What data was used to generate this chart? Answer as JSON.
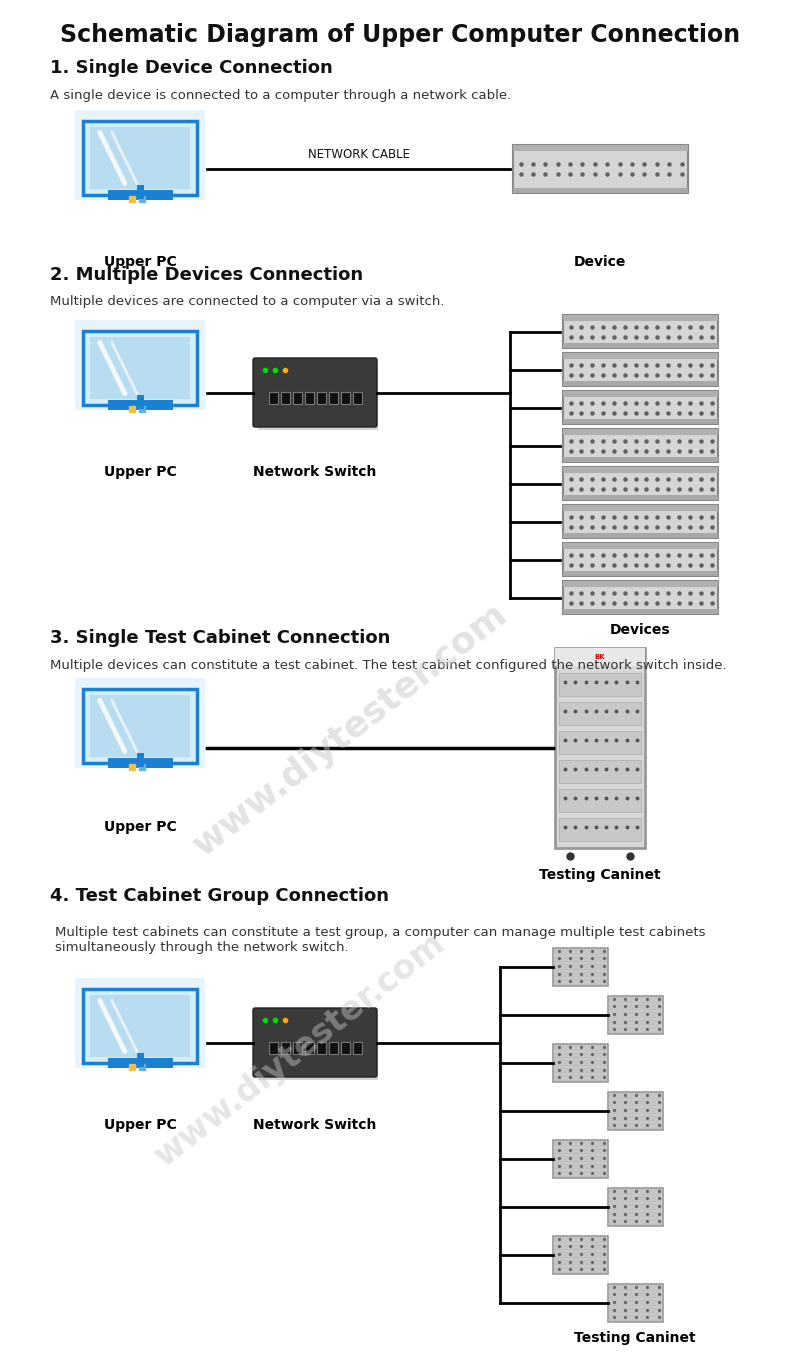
{
  "title": "Schematic Diagram of Upper Computer Connection",
  "bg_color": "#ffffff",
  "title_fontsize": 17,
  "section_fontsize": 13,
  "desc_fontsize": 9.5,
  "label_fontsize": 10,
  "sections": [
    {
      "number": "1",
      "heading": "Single Device Connection",
      "description": "A single device is connected to a computer through a network cable.",
      "layout": "single",
      "cable_label": "NETWORK CABLE",
      "left_label": "Upper PC",
      "right_label": "Device"
    },
    {
      "number": "2",
      "heading": "Multiple Devices Connection",
      "description": "Multiple devices are connected to a computer via a switch.",
      "layout": "multiple",
      "left_label": "Upper PC",
      "middle_label": "Network Switch",
      "right_label": "Devices",
      "num_devices": 8
    },
    {
      "number": "3",
      "heading": "Single Test Cabinet Connection",
      "description": "Multiple devices can constitute a test cabinet. The test cabinet configured the network switch inside.",
      "layout": "cabinet_single",
      "left_label": "Upper PC",
      "right_label": "Testing Caninet"
    },
    {
      "number": "4",
      "heading": "Test Cabinet Group Connection",
      "description": "Multiple test cabinets can constitute a test group, a computer can manage multiple test cabinets\nsimultaneously through the network switch.",
      "layout": "cabinet_group",
      "left_label": "Upper PC",
      "middle_label": "Network Switch",
      "right_label": "Testing Caninet",
      "num_cabinets": 8
    }
  ],
  "watermark_text": "www.diytester.com",
  "monitor_screen_color": "#cce8f8",
  "monitor_frame_color": "#1b7fd4",
  "monitor_inner_color": "#a8d8f0",
  "monitor_stand_color": "#1b7fd4",
  "monitor_base_color": "#1b7fd4",
  "switch_body_color": "#3a3a3a",
  "switch_port_color": "#1a1a1a",
  "device_body_color": "#c8c8c8",
  "device_edge_color": "#888888",
  "cabinet_body_color": "#cccccc",
  "cabinet_edge_color": "#888888",
  "line_color": "#000000"
}
